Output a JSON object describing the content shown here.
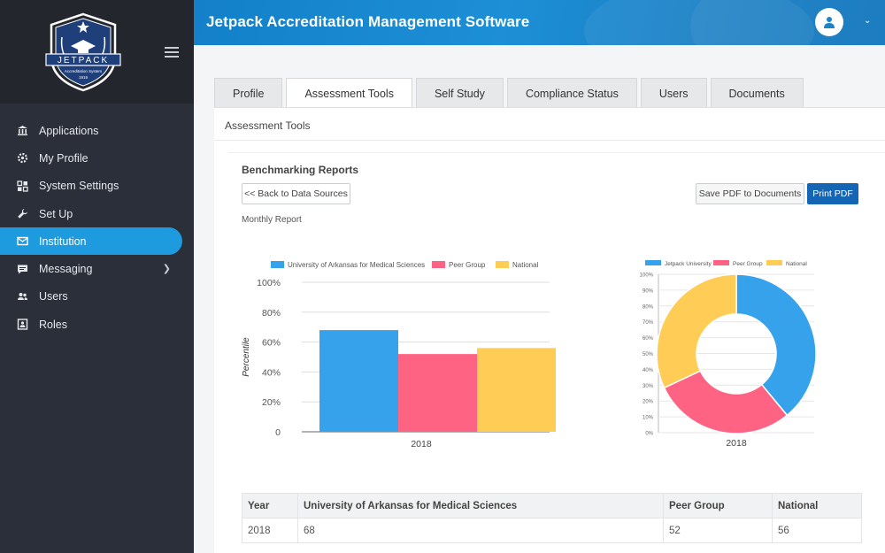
{
  "app": {
    "title": "Jetpack Accreditation Management Software"
  },
  "logo": {
    "name": "JETPACK",
    "subtitle": "Accreditation System",
    "year": "1919"
  },
  "sidebar": {
    "items": [
      {
        "label": "Applications",
        "icon": "bank-icon"
      },
      {
        "label": "My Profile",
        "icon": "gear-icon"
      },
      {
        "label": "System Settings",
        "icon": "grid-icon"
      },
      {
        "label": "Set Up",
        "icon": "wrench-icon"
      },
      {
        "label": "Institution",
        "icon": "envelope-icon",
        "active": true
      },
      {
        "label": "Messaging",
        "icon": "chat-icon",
        "has_submenu": true
      },
      {
        "label": "Users",
        "icon": "users-icon"
      },
      {
        "label": "Roles",
        "icon": "id-card-icon"
      }
    ]
  },
  "tabs": [
    {
      "label": "Profile"
    },
    {
      "label": "Assessment Tools",
      "active": true
    },
    {
      "label": "Self Study"
    },
    {
      "label": "Compliance Status"
    },
    {
      "label": "Users"
    },
    {
      "label": "Documents"
    }
  ],
  "panel": {
    "title": "Assessment Tools",
    "section_title": "Benchmarking Reports",
    "back_button": "<< Back to Data Sources",
    "save_button": "Save PDF to Documents",
    "print_button": "Print PDF",
    "report_label": "Monthly Report"
  },
  "colors": {
    "university": "#36a2eb",
    "peer": "#ff6384",
    "national": "#ffcd56",
    "accent": "#1e9bdf"
  },
  "chart_data": [
    {
      "type": "bar",
      "categories": [
        "2018"
      ],
      "series": [
        {
          "name": "University of Arkansas for Medical Sciences",
          "values": [
            68
          ]
        },
        {
          "name": "Peer Group",
          "values": [
            52
          ]
        },
        {
          "name": "National",
          "values": [
            56
          ]
        }
      ],
      "ylabel": "Percentile",
      "ylim": [
        0,
        100
      ],
      "yticks": [
        "0",
        "20%",
        "40%",
        "60%",
        "80%",
        "100%"
      ],
      "legend": "top"
    },
    {
      "type": "pie",
      "subtype": "doughnut",
      "xlabel": "2018",
      "series": [
        {
          "name": "Jetpack University",
          "value": 39
        },
        {
          "name": "Peer Group",
          "value": 29
        },
        {
          "name": "National",
          "value": 32
        }
      ],
      "ylim": [
        0,
        100
      ],
      "yticks": [
        "0%",
        "10%",
        "20%",
        "30%",
        "40%",
        "50%",
        "60%",
        "70%",
        "80%",
        "90%",
        "100%"
      ],
      "legend": "top"
    }
  ],
  "table": {
    "headers": [
      "Year",
      "University of Arkansas for Medical Sciences",
      "Peer Group",
      "National"
    ],
    "rows": [
      [
        "2018",
        "68",
        "52",
        "56"
      ]
    ]
  }
}
